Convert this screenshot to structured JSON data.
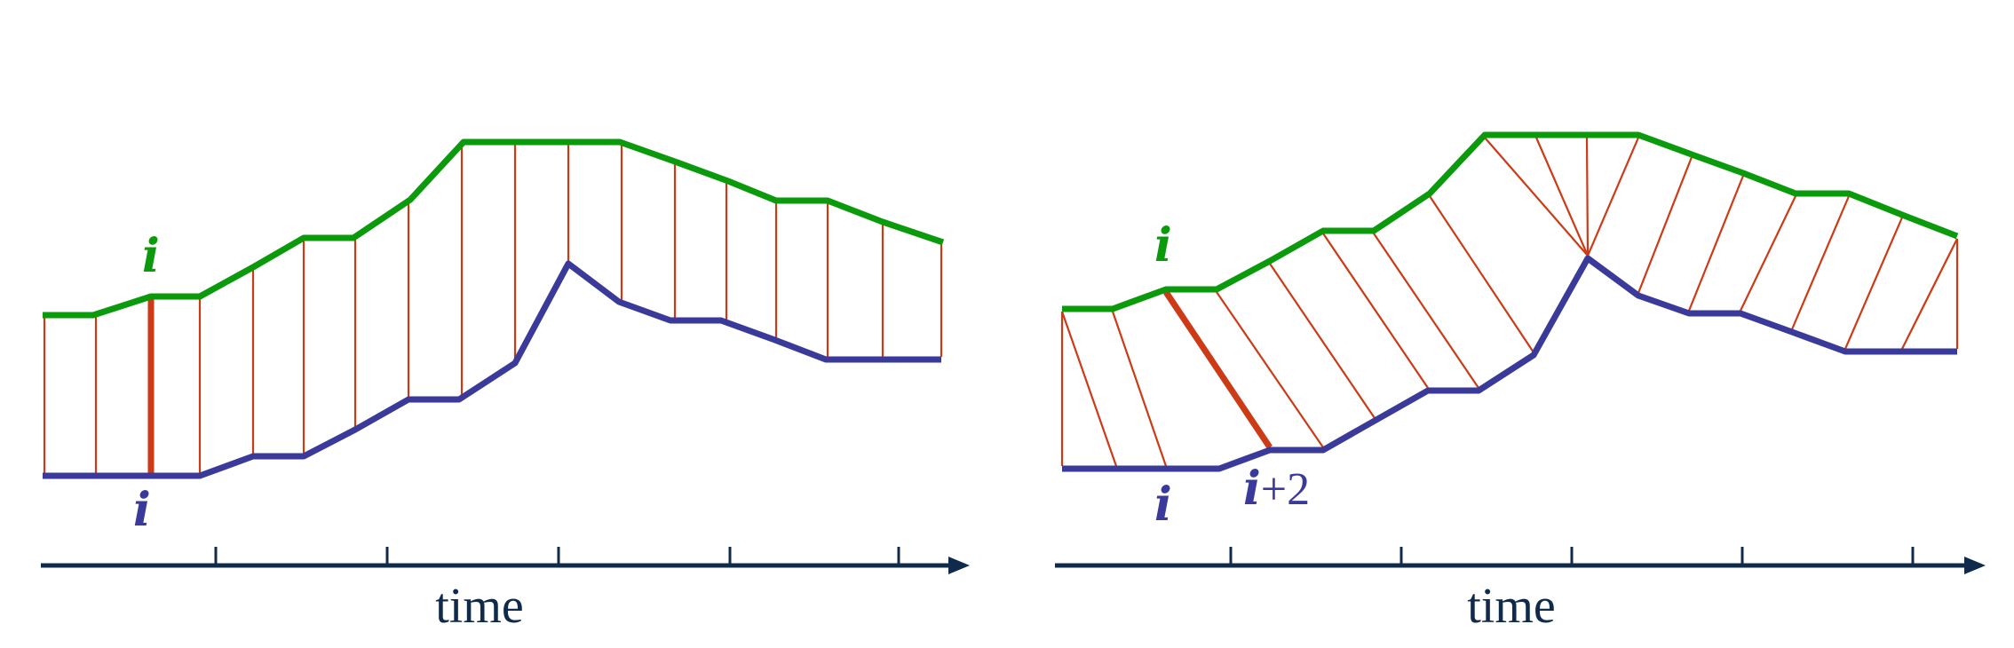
{
  "colors": {
    "top": "#0b9a0b",
    "bottom": "#3a3a9a",
    "link": "#cc3a16",
    "axis": "#0f2a4a",
    "label_top": "#0b9a0b",
    "label_bottom": "#3a3a9a",
    "axis_text": "#0f2a4a"
  },
  "left_panel": {
    "top_label": "i",
    "bottom_label": "i",
    "axis_label": "time"
  },
  "right_panel": {
    "top_label": "i",
    "bottom_label": "i",
    "bottom_label2_var": "i",
    "bottom_label2_suffix": "+2",
    "axis_label": "time"
  }
}
